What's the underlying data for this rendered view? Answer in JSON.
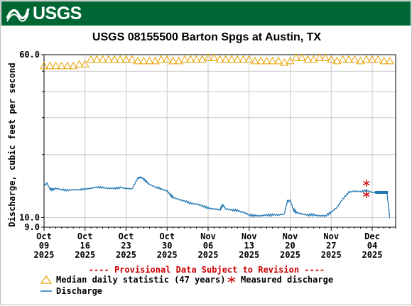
{
  "header": {
    "logo_text": "USGS",
    "title": "USGS 08155500 Barton Spgs at Austin, TX"
  },
  "provisional_note": "---- Provisional Data Subject to Revision ----",
  "colors": {
    "banner": "#006633",
    "median": "#e8a000",
    "discharge": "#1f77b4",
    "measured": "#cc0000",
    "note": "#cc0000"
  },
  "chart_data": {
    "type": "line",
    "ylabel": "Discharge, cubic feet per second",
    "yscale": "log",
    "ylim": [
      9.0,
      60.0
    ],
    "y_tick_labels": [
      "60.0",
      "10.0",
      "9.0"
    ],
    "x_tick_labels": [
      {
        "day": "Oct",
        "date": "09",
        "year": "2025",
        "x": 0
      },
      {
        "day": "Oct",
        "date": "16",
        "year": "2025",
        "x": 7
      },
      {
        "day": "Oct",
        "date": "23",
        "year": "2025",
        "x": 14
      },
      {
        "day": "Oct",
        "date": "30",
        "year": "2025",
        "x": 21
      },
      {
        "day": "Nov",
        "date": "06",
        "year": "2025",
        "x": 28
      },
      {
        "day": "Nov",
        "date": "13",
        "year": "2025",
        "x": 35
      },
      {
        "day": "Nov",
        "date": "20",
        "year": "2025",
        "x": 42
      },
      {
        "day": "Nov",
        "date": "27",
        "year": "2025",
        "x": 49
      },
      {
        "day": "Dec",
        "date": "04",
        "year": "2025",
        "x": 56
      }
    ],
    "xlim": [
      0,
      60
    ],
    "grid": true,
    "legend_placement": "bottom",
    "series": [
      {
        "name": "Median daily statistic (47 years)",
        "kind": "triangle-markers",
        "points": [
          [
            0,
            53
          ],
          [
            1,
            53
          ],
          [
            2,
            53
          ],
          [
            3,
            53
          ],
          [
            4,
            53
          ],
          [
            5,
            53
          ],
          [
            6,
            54
          ],
          [
            7,
            54
          ],
          [
            8,
            57
          ],
          [
            9,
            57
          ],
          [
            10,
            57
          ],
          [
            11,
            57
          ],
          [
            12,
            57
          ],
          [
            13,
            57
          ],
          [
            14,
            57
          ],
          [
            15,
            57
          ],
          [
            16,
            56
          ],
          [
            17,
            56
          ],
          [
            18,
            56
          ],
          [
            19,
            56
          ],
          [
            20,
            57
          ],
          [
            21,
            57
          ],
          [
            22,
            56
          ],
          [
            23,
            56
          ],
          [
            24,
            57
          ],
          [
            25,
            57
          ],
          [
            26,
            57
          ],
          [
            27,
            57
          ],
          [
            28,
            58
          ],
          [
            29,
            58
          ],
          [
            30,
            57
          ],
          [
            31,
            57
          ],
          [
            32,
            57
          ],
          [
            33,
            57
          ],
          [
            34,
            57
          ],
          [
            35,
            57
          ],
          [
            36,
            56
          ],
          [
            37,
            56
          ],
          [
            38,
            56
          ],
          [
            39,
            56
          ],
          [
            40,
            56
          ],
          [
            41,
            55
          ],
          [
            42,
            56
          ],
          [
            43,
            58
          ],
          [
            44,
            58
          ],
          [
            45,
            57
          ],
          [
            46,
            57
          ],
          [
            47,
            58
          ],
          [
            48,
            58
          ],
          [
            49,
            57
          ],
          [
            50,
            56
          ],
          [
            51,
            57
          ],
          [
            52,
            57
          ],
          [
            53,
            57
          ],
          [
            54,
            56
          ],
          [
            55,
            57
          ],
          [
            56,
            57
          ],
          [
            57,
            57
          ],
          [
            58,
            56
          ],
          [
            59,
            56
          ]
        ]
      },
      {
        "name": "Discharge",
        "kind": "line",
        "points": [
          [
            0,
            14.2
          ],
          [
            0.5,
            14.6
          ],
          [
            1,
            13.7
          ],
          [
            1.5,
            13.6
          ],
          [
            2,
            13.8
          ],
          [
            3,
            13.6
          ],
          [
            4,
            13.5
          ],
          [
            5,
            13.6
          ],
          [
            6,
            13.6
          ],
          [
            7,
            13.7
          ],
          [
            8,
            13.8
          ],
          [
            9,
            14.0
          ],
          [
            10,
            13.9
          ],
          [
            11,
            13.8
          ],
          [
            12,
            13.8
          ],
          [
            13,
            13.9
          ],
          [
            14,
            13.8
          ],
          [
            15,
            13.7
          ],
          [
            16,
            15.4
          ],
          [
            16.5,
            15.6
          ],
          [
            17,
            15.3
          ],
          [
            17.5,
            14.8
          ],
          [
            18,
            14.4
          ],
          [
            19,
            14.0
          ],
          [
            20,
            13.7
          ],
          [
            21,
            13.4
          ],
          [
            21.5,
            12.9
          ],
          [
            22,
            12.5
          ],
          [
            23,
            12.2
          ],
          [
            24,
            12.0
          ],
          [
            25,
            11.7
          ],
          [
            26,
            11.6
          ],
          [
            27,
            11.4
          ],
          [
            28,
            11.1
          ],
          [
            29,
            11.0
          ],
          [
            30,
            10.9
          ],
          [
            30.5,
            11.5
          ],
          [
            31,
            11.0
          ],
          [
            32,
            10.9
          ],
          [
            33,
            10.8
          ],
          [
            34,
            10.6
          ],
          [
            35,
            10.3
          ],
          [
            36,
            10.2
          ],
          [
            37,
            10.2
          ],
          [
            38,
            10.3
          ],
          [
            39,
            10.3
          ],
          [
            40,
            10.3
          ],
          [
            41,
            10.4
          ],
          [
            41.5,
            11.9
          ],
          [
            42,
            12.1
          ],
          [
            42.5,
            11.0
          ],
          [
            43,
            10.6
          ],
          [
            44,
            10.4
          ],
          [
            45,
            10.3
          ],
          [
            46,
            10.3
          ],
          [
            47,
            10.2
          ],
          [
            48,
            10.2
          ],
          [
            49,
            10.6
          ],
          [
            50,
            11.2
          ],
          [
            51,
            12.3
          ],
          [
            52,
            13.2
          ],
          [
            53,
            13.4
          ],
          [
            54,
            13.3
          ],
          [
            55,
            13.5
          ],
          [
            56,
            13.2
          ],
          [
            57,
            13.2
          ],
          [
            58,
            13.2
          ],
          [
            58.5,
            13.2
          ],
          [
            58.8,
            11.2
          ],
          [
            59,
            9.9
          ]
        ]
      },
      {
        "name": "Measured discharge",
        "kind": "asterisk-markers",
        "points": [
          [
            55,
            14.6
          ],
          [
            55,
            12.9
          ]
        ]
      }
    ]
  }
}
